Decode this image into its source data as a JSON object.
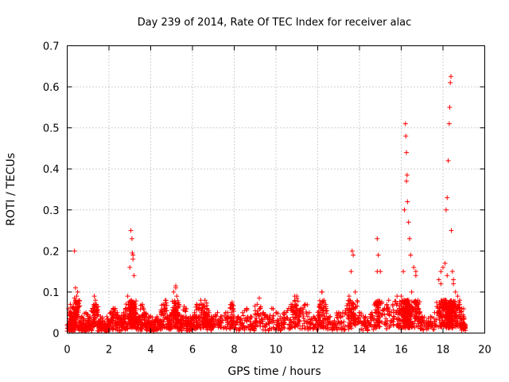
{
  "chart_data": {
    "type": "scatter",
    "title": "Day 239 of 2014, Rate Of TEC Index for receiver alac",
    "xlabel": "GPS time / hours",
    "ylabel": "ROTI / TECUs",
    "xlim": [
      0,
      20
    ],
    "ylim": [
      0,
      0.7
    ],
    "xticks": [
      "0",
      "2",
      "4",
      "6",
      "8",
      "10",
      "12",
      "14",
      "16",
      "18",
      "20"
    ],
    "yticks": [
      "0",
      "0.1",
      "0.2",
      "0.3",
      "0.4",
      "0.5",
      "0.6",
      "0.7"
    ],
    "grid": true,
    "marker": "plus",
    "color": "#ff0000",
    "series": [
      {
        "name": "ROTI",
        "x": [
          0.05,
          0.1,
          0.15,
          0.2,
          0.25,
          0.3,
          0.35,
          0.4,
          0.45,
          0.5,
          0.6,
          0.7,
          0.8,
          0.9,
          1.0,
          1.1,
          1.2,
          1.3,
          1.35,
          1.4,
          1.5,
          1.6,
          1.7,
          1.8,
          1.9,
          2.0,
          2.1,
          2.2,
          2.3,
          2.4,
          2.5,
          2.6,
          2.7,
          2.8,
          2.9,
          3.0,
          3.05,
          3.1,
          3.15,
          3.2,
          3.25,
          3.3,
          3.4,
          3.5,
          3.6,
          3.7,
          3.8,
          3.9,
          4.0,
          4.1,
          4.2,
          4.3,
          4.4,
          4.5,
          4.6,
          4.7,
          4.8,
          4.9,
          5.0,
          5.1,
          5.2,
          5.25,
          5.3,
          5.4,
          5.5,
          5.6,
          5.7,
          5.8,
          5.9,
          6.0,
          6.1,
          6.2,
          6.3,
          6.4,
          6.5,
          6.6,
          6.7,
          6.8,
          6.9,
          7.0,
          7.2,
          7.4,
          7.6,
          7.8,
          7.9,
          8.0,
          8.2,
          8.4,
          8.6,
          8.8,
          9.0,
          9.1,
          9.2,
          9.4,
          9.6,
          9.8,
          10.0,
          10.2,
          10.4,
          10.6,
          10.8,
          10.9,
          11.0,
          11.2,
          11.4,
          11.6,
          11.8,
          12.0,
          12.1,
          12.2,
          12.3,
          12.4,
          12.6,
          12.8,
          13.0,
          13.2,
          13.4,
          13.5,
          13.6,
          13.65,
          13.7,
          13.8,
          14.0,
          14.2,
          14.4,
          14.6,
          14.8,
          14.85,
          14.9,
          15.0,
          15.2,
          15.4,
          15.6,
          15.8,
          15.9,
          16.0,
          16.1,
          16.15,
          16.2,
          16.22,
          16.25,
          16.28,
          16.3,
          16.35,
          16.4,
          16.45,
          16.5,
          16.6,
          16.7,
          16.8,
          16.9,
          17.0,
          17.2,
          17.4,
          17.6,
          17.8,
          17.9,
          18.0,
          18.1,
          18.15,
          18.2,
          18.25,
          18.3,
          18.32,
          18.35,
          18.38,
          18.4,
          18.45,
          18.5,
          18.6,
          18.7,
          18.8,
          18.9,
          19.0,
          19.05,
          0.35,
          0.2,
          0.4,
          3.12,
          3.15,
          5.2,
          6.6,
          7.9,
          11.0,
          12.2,
          14.85,
          16.25,
          16.7,
          17.9,
          18.2,
          18.5
        ],
        "y": [
          0.015,
          0.05,
          0.07,
          0.03,
          0.02,
          0.04,
          0.2,
          0.11,
          0.09,
          0.1,
          0.03,
          0.04,
          0.02,
          0.05,
          0.03,
          0.04,
          0.06,
          0.09,
          0.08,
          0.07,
          0.03,
          0.04,
          0.03,
          0.02,
          0.04,
          0.03,
          0.05,
          0.06,
          0.06,
          0.05,
          0.04,
          0.03,
          0.05,
          0.06,
          0.09,
          0.16,
          0.25,
          0.23,
          0.19,
          0.14,
          0.05,
          0.06,
          0.04,
          0.03,
          0.07,
          0.05,
          0.04,
          0.03,
          0.04,
          0.03,
          0.02,
          0.04,
          0.03,
          0.05,
          0.07,
          0.08,
          0.04,
          0.03,
          0.05,
          0.1,
          0.11,
          0.09,
          0.05,
          0.03,
          0.04,
          0.065,
          0.03,
          0.03,
          0.04,
          0.04,
          0.05,
          0.07,
          0.06,
          0.08,
          0.07,
          0.05,
          0.06,
          0.05,
          0.04,
          0.04,
          0.05,
          0.04,
          0.05,
          0.04,
          0.07,
          0.03,
          0.04,
          0.05,
          0.06,
          0.04,
          0.03,
          0.07,
          0.085,
          0.05,
          0.04,
          0.06,
          0.05,
          0.04,
          0.05,
          0.06,
          0.07,
          0.09,
          0.085,
          0.06,
          0.07,
          0.05,
          0.04,
          0.05,
          0.07,
          0.1,
          0.08,
          0.06,
          0.04,
          0.03,
          0.05,
          0.05,
          0.06,
          0.09,
          0.15,
          0.2,
          0.19,
          0.1,
          0.05,
          0.04,
          0.03,
          0.05,
          0.07,
          0.23,
          0.19,
          0.15,
          0.06,
          0.08,
          0.07,
          0.09,
          0.06,
          0.09,
          0.15,
          0.3,
          0.51,
          0.48,
          0.44,
          0.385,
          0.32,
          0.27,
          0.23,
          0.19,
          0.1,
          0.16,
          0.15,
          0.08,
          0.05,
          0.04,
          0.03,
          0.04,
          0.05,
          0.13,
          0.15,
          0.16,
          0.17,
          0.3,
          0.33,
          0.42,
          0.51,
          0.55,
          0.61,
          0.625,
          0.25,
          0.15,
          0.12,
          0.1,
          0.09,
          0.08,
          0.06,
          0.04,
          0.02,
          0.085,
          0.05,
          0.08,
          0.195,
          0.18,
          0.115,
          0.08,
          0.075,
          0.09,
          0.1,
          0.15,
          0.37,
          0.14,
          0.12,
          0.14,
          0.13
        ]
      }
    ]
  }
}
